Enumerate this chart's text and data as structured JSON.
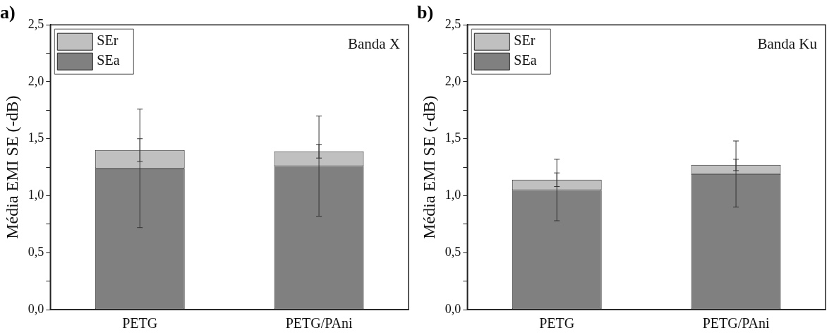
{
  "chart_data": [
    {
      "type": "bar",
      "title": "a)",
      "ylabel": "Média EMI SE (-dB)",
      "categories": [
        "PETG",
        "PETG/PAni"
      ],
      "stacked": true,
      "series": [
        {
          "name": "SEa",
          "color": "#808080",
          "values": [
            1.24,
            1.26
          ],
          "errors": [
            0.52,
            0.44
          ]
        },
        {
          "name": "SEr",
          "color": "#c0c0c0",
          "values": [
            0.16,
            0.13
          ],
          "errors": [
            0.1,
            0.06
          ]
        }
      ],
      "ylim": [
        0,
        2.5
      ],
      "yticks": [
        {
          "value": 0,
          "label": "0,0"
        },
        {
          "value": 0.25,
          "label": null
        },
        {
          "value": 0.5,
          "label": "0,5"
        },
        {
          "value": 0.75,
          "label": null
        },
        {
          "value": 1,
          "label": "1,0"
        },
        {
          "value": 1.25,
          "label": null
        },
        {
          "value": 1.5,
          "label": "1,5"
        },
        {
          "value": 1.75,
          "label": null
        },
        {
          "value": 2,
          "label": "2,0"
        },
        {
          "value": 2.25,
          "label": null
        },
        {
          "value": 2.5,
          "label": "2,5"
        }
      ],
      "annotations": [
        "Banda X"
      ],
      "legend": "top left",
      "grid": false
    },
    {
      "type": "bar",
      "title": "b)",
      "ylabel": "Média EMI SE (-dB)",
      "categories": [
        "PETG",
        "PETG/PAni"
      ],
      "stacked": true,
      "series": [
        {
          "name": "SEa",
          "color": "#808080",
          "values": [
            1.05,
            1.19
          ],
          "errors": [
            0.27,
            0.29
          ]
        },
        {
          "name": "SEr",
          "color": "#c0c0c0",
          "values": [
            0.09,
            0.08
          ],
          "errors": [
            0.06,
            0.05
          ]
        }
      ],
      "ylim": [
        0,
        2.5
      ],
      "yticks": [
        {
          "value": 0,
          "label": "0,0"
        },
        {
          "value": 0.25,
          "label": null
        },
        {
          "value": 0.5,
          "label": "0,5"
        },
        {
          "value": 0.75,
          "label": null
        },
        {
          "value": 1,
          "label": "1,0"
        },
        {
          "value": 1.25,
          "label": null
        },
        {
          "value": 1.5,
          "label": "1,5"
        },
        {
          "value": 1.75,
          "label": null
        },
        {
          "value": 2,
          "label": "2,0"
        },
        {
          "value": 2.25,
          "label": null
        },
        {
          "value": 2.5,
          "label": "2,5"
        }
      ],
      "annotations": [
        "Banda Ku"
      ],
      "legend": "top left",
      "grid": false
    }
  ]
}
